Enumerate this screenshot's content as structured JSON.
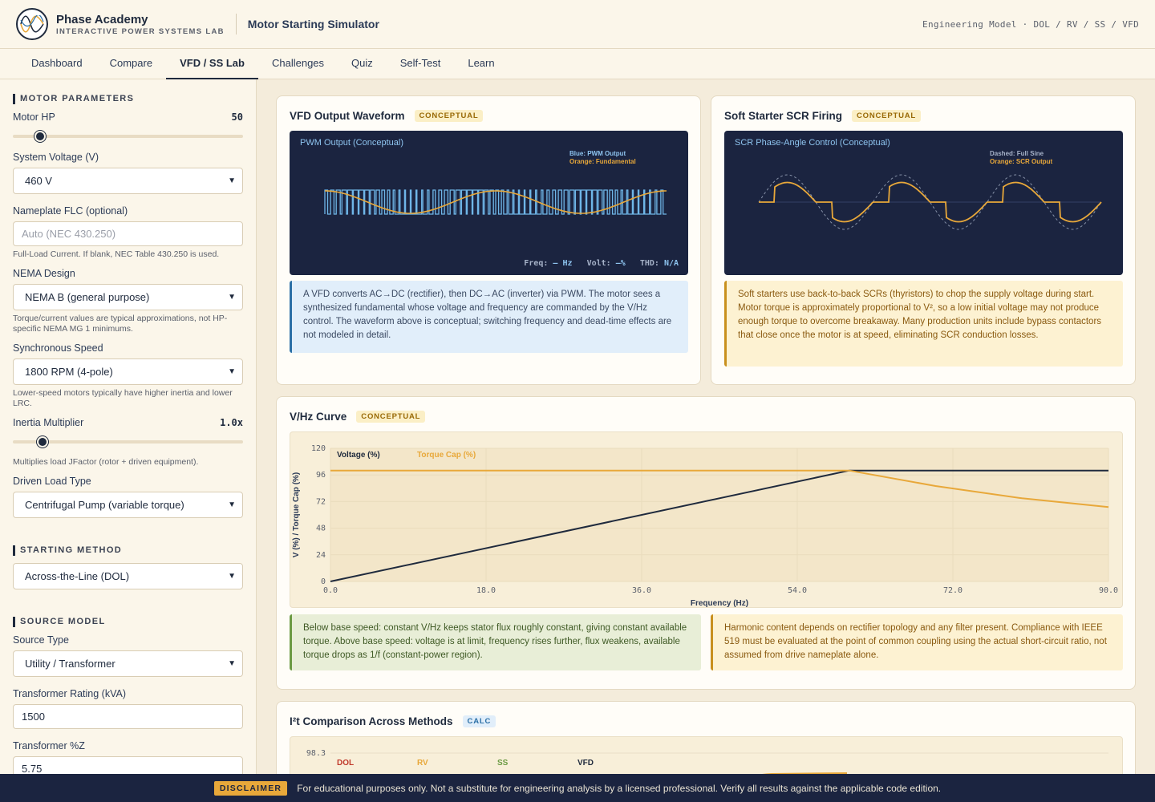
{
  "header": {
    "brand_name": "Phase Academy",
    "brand_sub": "INTERACTIVE POWER SYSTEMS LAB",
    "app_title": "Motor Starting Simulator",
    "model_text": "Engineering Model · DOL / RV / SS / VFD"
  },
  "nav": {
    "tabs": [
      {
        "label": "Dashboard"
      },
      {
        "label": "Compare"
      },
      {
        "label": "VFD / SS Lab",
        "active": true
      },
      {
        "label": "Challenges"
      },
      {
        "label": "Quiz"
      },
      {
        "label": "Self-Test"
      },
      {
        "label": "Learn"
      }
    ]
  },
  "sidebar": {
    "motor_params_title": "MOTOR PARAMETERS",
    "motor_hp": {
      "label": "Motor HP",
      "value": "50",
      "fraction": 0.12
    },
    "system_voltage": {
      "label": "System Voltage (V)",
      "value": "460 V"
    },
    "flc": {
      "label": "Nameplate FLC (optional)",
      "placeholder": "Auto (NEC 430.250)",
      "hint": "Full-Load Current. If blank, NEC Table 430.250 is used."
    },
    "nema": {
      "label": "NEMA Design",
      "value": "NEMA B (general purpose)",
      "hint": "Torque/current values are typical approximations, not HP-specific NEMA MG 1 minimums."
    },
    "sync_speed": {
      "label": "Synchronous Speed",
      "value": "1800 RPM (4-pole)",
      "hint": "Lower-speed motors typically have higher inertia and lower LRC."
    },
    "inertia": {
      "label": "Inertia Multiplier",
      "value": "1.0x",
      "fraction": 0.13,
      "hint": "Multiplies load JFactor (rotor + driven equipment)."
    },
    "load_type": {
      "label": "Driven Load Type",
      "value": "Centrifugal Pump (variable torque)"
    },
    "starting_title": "STARTING METHOD",
    "starting_method": {
      "value": "Across-the-Line (DOL)"
    },
    "source_title": "SOURCE MODEL",
    "source_type": {
      "label": "Source Type",
      "value": "Utility / Transformer"
    },
    "xfmr_rating": {
      "label": "Transformer Rating (kVA)",
      "value": "1500"
    },
    "xfmr_z": {
      "label": "Transformer %Z",
      "value": "5.75"
    }
  },
  "vfd_card": {
    "title": "VFD Output Waveform",
    "badge": "CONCEPTUAL",
    "scope_title": "PWM Output (Conceptual)",
    "legend_blue": "Blue: PWM Output",
    "legend_orange": "Orange: Fundamental",
    "readout_freq_label": "Freq:",
    "readout_freq_value": "— Hz",
    "readout_volt_label": "Volt:",
    "readout_volt_value": "—%",
    "readout_thd_label": "THD:",
    "readout_thd_value": "N/A",
    "note": "A VFD converts AC→DC (rectifier), then DC→AC (inverter) via PWM. The motor sees a synthesized fundamental whose voltage and frequency are commanded by the V/Hz control. The waveform above is conceptual; switching frequency and dead-time effects are not modeled in detail."
  },
  "ss_card": {
    "title": "Soft Starter SCR Firing",
    "badge": "CONCEPTUAL",
    "scope_title": "SCR Phase-Angle Control (Conceptual)",
    "legend_dashed": "Dashed: Full Sine",
    "legend_orange": "Orange: SCR Output",
    "note": "Soft starters use back-to-back SCRs (thyristors) to chop the supply voltage during start. Motor torque is approximately proportional to V², so a low initial voltage may not produce enough torque to overcome breakaway. Many production units include bypass contactors that close once the motor is at speed, eliminating SCR conduction losses."
  },
  "vhz_card": {
    "title": "V/Hz Curve",
    "badge": "CONCEPTUAL",
    "note_green": "Below base speed: constant V/Hz keeps stator flux roughly constant, giving constant available torque. Above base speed: voltage is at limit, frequency rises further, flux weakens, available torque drops as 1/f (constant-power region).",
    "note_amber": "Harmonic content depends on rectifier topology and any filter present. Compliance with IEEE 519 must be evaluated at the point of common coupling using the actual short-circuit ratio, not assumed from drive nameplate alone."
  },
  "i2t_card": {
    "title": "I²t Comparison Across Methods",
    "badge": "CALC",
    "top_tick": "98.3",
    "legend": [
      {
        "name": "DOL",
        "color": "#c0392b"
      },
      {
        "name": "RV",
        "color": "#e8a83a"
      },
      {
        "name": "SS",
        "color": "#6b9a43"
      },
      {
        "name": "VFD",
        "color": "#1f2a3d"
      }
    ]
  },
  "chart_data": {
    "type": "line",
    "xlabel": "Frequency (Hz)",
    "ylabel": "V (%) / Torque Cap (%)",
    "xlim": [
      0,
      90
    ],
    "ylim": [
      0,
      120
    ],
    "xticks": [
      "0.0",
      "18.0",
      "36.0",
      "54.0",
      "72.0",
      "90.0"
    ],
    "yticks": [
      "0",
      "24",
      "48",
      "72",
      "96",
      "120"
    ],
    "series": [
      {
        "name": "Voltage (%)",
        "color": "#1f2a3d",
        "x": [
          0,
          60,
          90
        ],
        "y": [
          0,
          100,
          100
        ]
      },
      {
        "name": "Torque Cap (%)",
        "color": "#e8a83a",
        "x": [
          0,
          60,
          70,
          80,
          90
        ],
        "y": [
          100,
          100,
          86,
          75,
          67
        ]
      }
    ]
  },
  "disclaimer": {
    "badge": "DISCLAIMER",
    "text": "For educational purposes only. Not a substitute for engineering analysis by a licensed professional. Verify all results against the applicable code edition."
  }
}
